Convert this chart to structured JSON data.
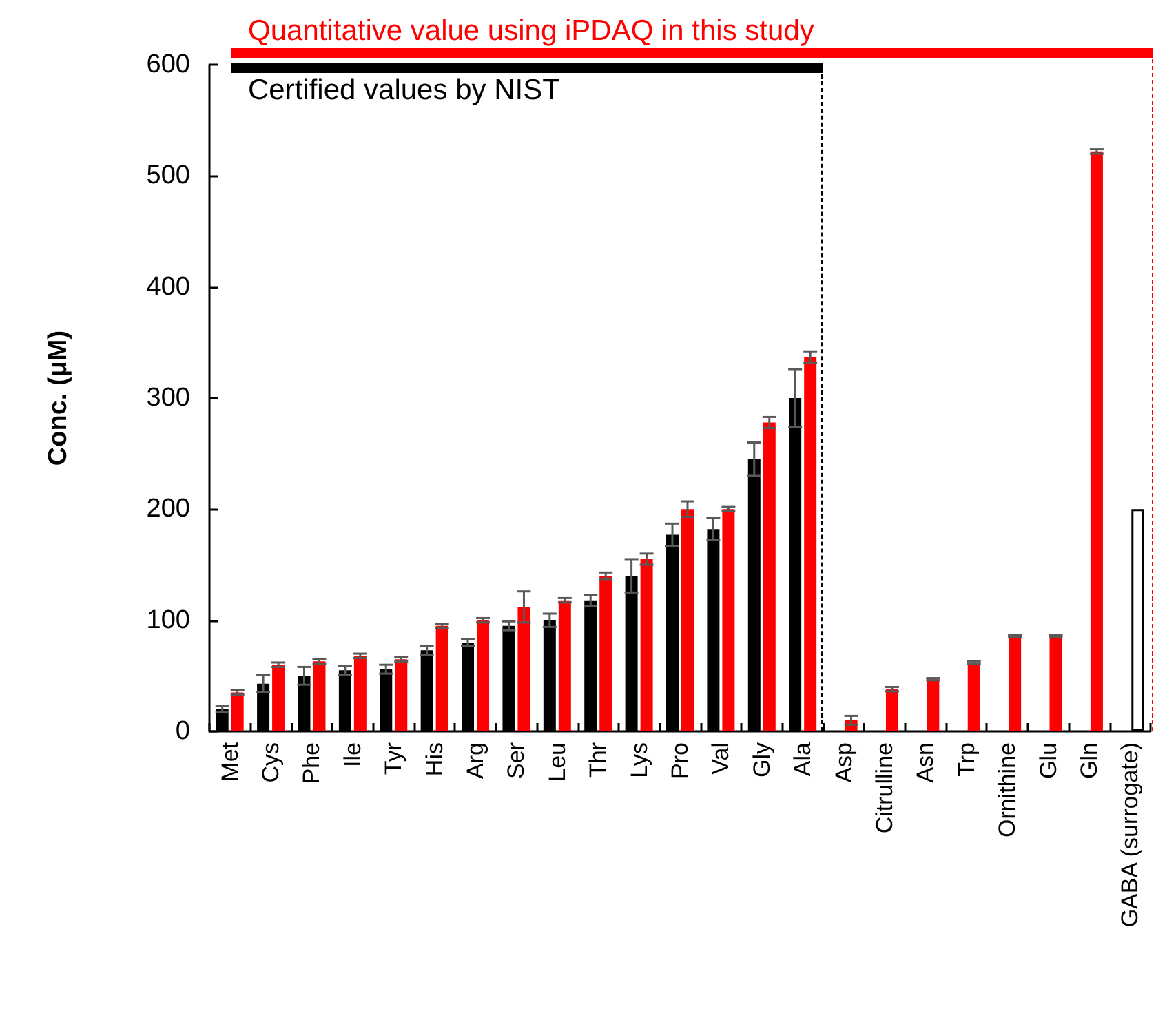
{
  "chart_data": {
    "type": "bar",
    "ylabel": "Conc. (μM)",
    "categories": [
      "Met",
      "Cys",
      "Phe",
      "Ile",
      "Tyr",
      "His",
      "Arg",
      "Ser",
      "Leu",
      "Thr",
      "Lys",
      "Pro",
      "Val",
      "Gly",
      "Ala",
      "Asp",
      "Citrulline",
      "Asn",
      "Trp",
      "Ornithine",
      "Glu",
      "Gln",
      "GABA (surrogate)"
    ],
    "series": [
      {
        "name": "Certified values by NIST",
        "color": "#000000",
        "values": [
          20,
          43,
          50,
          55,
          56,
          73,
          80,
          95,
          100,
          118,
          140,
          177,
          182,
          245,
          300,
          null,
          null,
          null,
          null,
          null,
          null,
          null,
          null
        ],
        "errors": [
          3,
          8,
          8,
          4,
          4,
          4,
          3,
          4,
          6,
          5,
          15,
          10,
          10,
          15,
          26,
          null,
          null,
          null,
          null,
          null,
          null,
          null,
          null
        ]
      },
      {
        "name": "Quantitative value using iPDAQ in this study",
        "color": "#ff0000",
        "values": [
          35,
          60,
          63,
          68,
          65,
          95,
          100,
          112,
          118,
          140,
          155,
          200,
          200,
          278,
          337,
          10,
          38,
          47,
          62,
          86,
          86,
          522,
          null
        ],
        "errors": [
          2,
          2,
          2,
          2,
          2,
          2,
          2,
          14,
          2,
          3,
          5,
          7,
          2,
          5,
          5,
          4,
          2,
          1,
          1,
          1,
          1,
          2,
          null
        ]
      },
      {
        "color": "#ffffff",
        "values": [
          null,
          null,
          null,
          null,
          null,
          null,
          null,
          null,
          null,
          null,
          null,
          null,
          null,
          null,
          null,
          null,
          null,
          null,
          null,
          null,
          null,
          null,
          200
        ]
      }
    ],
    "ylim": [
      0,
      600
    ],
    "yticks": [
      0,
      100,
      200,
      300,
      400,
      500,
      600
    ],
    "legend": "top",
    "grid": false
  }
}
